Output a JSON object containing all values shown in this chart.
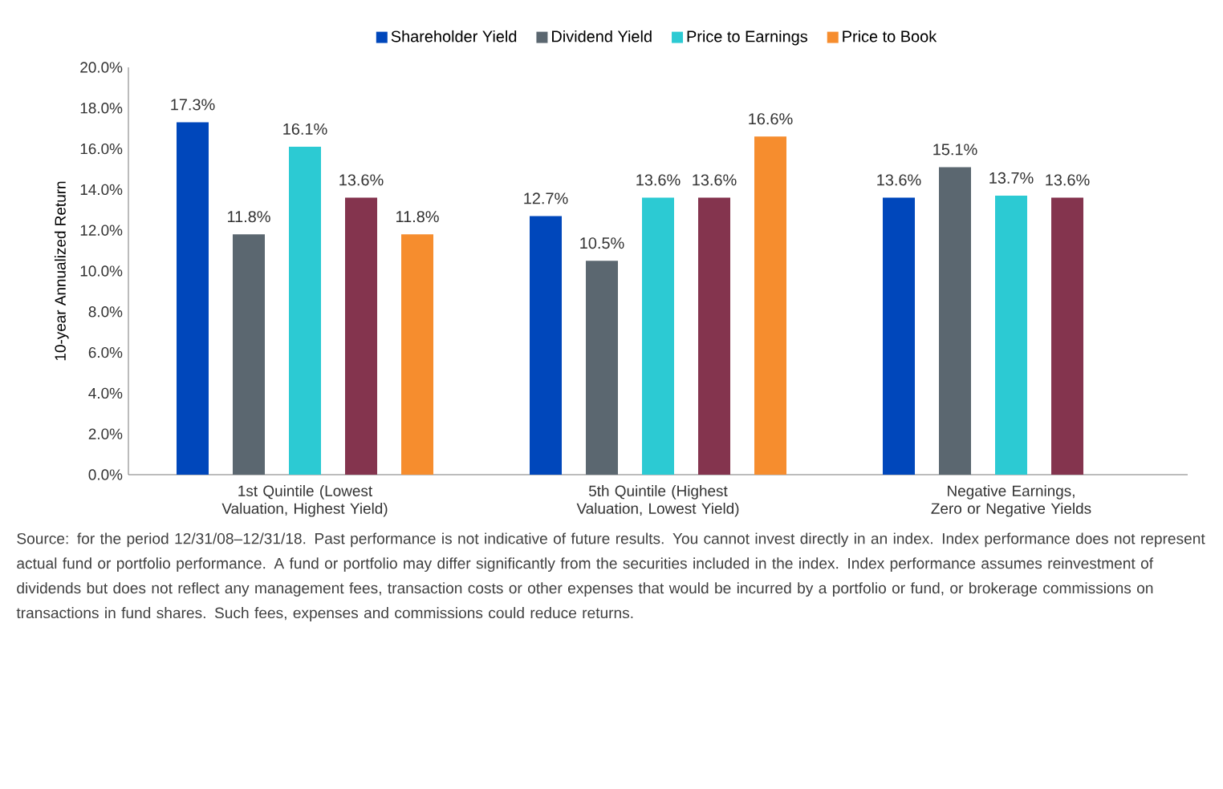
{
  "chart_data": {
    "type": "bar",
    "categories": [
      "1st Quintile (Lowest Valuation, Highest Yield)",
      "5th Quintile (Highest Valuation, Lowest Yield)",
      "Negative Earnings, Zero or Negative Yields"
    ],
    "ylabel": "10-year Annualized Return",
    "ylim": [
      0,
      20
    ],
    "yticks": [
      {
        "value": 0,
        "label": "0.0%"
      },
      {
        "value": 2,
        "label": "2.0%"
      },
      {
        "value": 4,
        "label": "4.0%"
      },
      {
        "value": 6,
        "label": "6.0%"
      },
      {
        "value": 8,
        "label": "8.0%"
      },
      {
        "value": 10,
        "label": "10.0%"
      },
      {
        "value": 12,
        "label": "12.0%"
      },
      {
        "value": 14,
        "label": "14.0%"
      },
      {
        "value": 16,
        "label": "16.0%"
      },
      {
        "value": 18,
        "label": "18.0%"
      },
      {
        "value": 20,
        "label": "20.0%"
      }
    ],
    "legend": "top",
    "series": [
      {
        "name": "Shareholder Yield",
        "color": "#0047bb",
        "values": [
          17.3,
          12.7,
          13.6
        ],
        "value_labels": [
          "17.3%",
          "12.7%",
          "13.6%"
        ]
      },
      {
        "name": "Dividend Yield",
        "color": "#5b6770",
        "values": [
          11.8,
          10.5,
          15.1
        ],
        "value_labels": [
          "11.8%",
          "10.5%",
          "15.1%"
        ]
      },
      {
        "name": "Price to Earnings",
        "color": "#2ccad3",
        "values": [
          16.1,
          13.6,
          13.7
        ],
        "value_labels": [
          "16.1%",
          "13.6%",
          "13.7%"
        ]
      },
      {
        "color": "#84344e",
        "values": [
          13.6,
          13.6,
          13.6
        ],
        "value_labels": [
          "13.6%",
          "13.6%",
          "13.6%"
        ]
      },
      {
        "name": "Price to Book",
        "color": "#f68d2e",
        "values": [
          11.8,
          16.6,
          null
        ],
        "value_labels": [
          "11.8%",
          "16.6%",
          null
        ]
      }
    ],
    "annotations": [
      "Source: for the period 12/31/08–12/31/18. Past performance is not indicative of future results. You cannot invest directly in an index. Index performance does not represent actual fund or portfolio performance. A fund or portfolio may differ significantly from the securities included in the index. Index performance assumes reinvestment of dividends but does not reflect any management fees, transaction costs or other expenses that would be incurred by a portfolio or fund, or brokerage commissions on transactions in fund shares. Such fees, expenses and commissions could reduce returns."
    ]
  }
}
